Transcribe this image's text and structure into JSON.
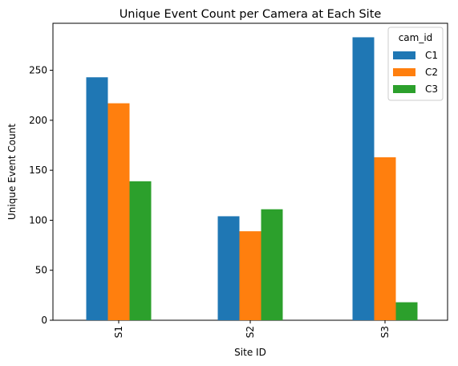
{
  "chart_data": {
    "type": "bar",
    "title": "Unique Event Count per Camera at Each Site",
    "xlabel": "Site ID",
    "ylabel": "Unique Event Count",
    "categories": [
      "S1",
      "S2",
      "S3"
    ],
    "series": [
      {
        "name": "C1",
        "color": "#1f77b4",
        "values": [
          243,
          104,
          283
        ]
      },
      {
        "name": "C2",
        "color": "#ff7f0e",
        "values": [
          217,
          89,
          163
        ]
      },
      {
        "name": "C3",
        "color": "#2ca02c",
        "values": [
          139,
          111,
          18
        ]
      }
    ],
    "ylim": [
      0,
      297
    ],
    "yticks": [
      "0",
      "50",
      "100",
      "150",
      "200",
      "250"
    ],
    "legend": {
      "title": "cam_id",
      "placement": "top-right"
    },
    "grid": false
  }
}
